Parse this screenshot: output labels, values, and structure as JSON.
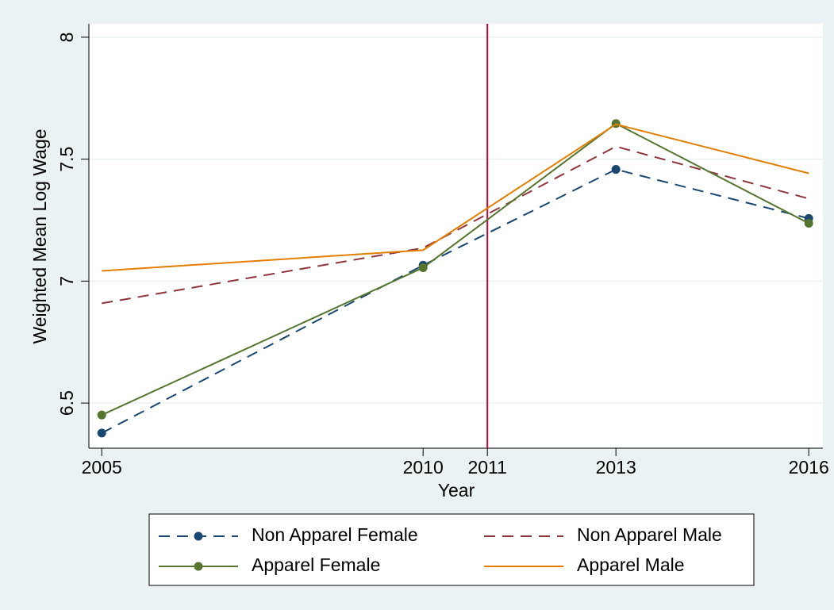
{
  "chart_data": {
    "type": "line",
    "x_label": "Year",
    "y_label": "Weighted Mean Log Wage",
    "x": [
      2005,
      2010,
      2013,
      2016
    ],
    "series": [
      {
        "name": "Non Apparel Female",
        "color": "#1a476f",
        "dash": true,
        "markers": true,
        "values": [
          6.377,
          7.065,
          7.458,
          7.257
        ]
      },
      {
        "name": "Non Apparel Male",
        "color": "#90353b",
        "dash": true,
        "markers": false,
        "values": [
          6.909,
          7.136,
          7.552,
          7.338
        ]
      },
      {
        "name": "Apparel Female",
        "color": "#55752f",
        "dash": false,
        "markers": true,
        "values": [
          6.451,
          7.055,
          7.646,
          7.237
        ]
      },
      {
        "name": "Apparel Male",
        "color": "#e37e00",
        "dash": false,
        "markers": false,
        "values": [
          7.042,
          7.127,
          7.643,
          7.442
        ]
      }
    ],
    "xlim": [
      2004.8,
      2016.22
    ],
    "xticks": [
      2005,
      2010,
      2011,
      2013,
      2016
    ],
    "ylim": [
      6.315,
      8.055
    ],
    "yticks": [
      6.5,
      7,
      7.5,
      8
    ],
    "vline": 2011,
    "vline_color": "#c10534",
    "grid": true,
    "legend": "bottom"
  }
}
